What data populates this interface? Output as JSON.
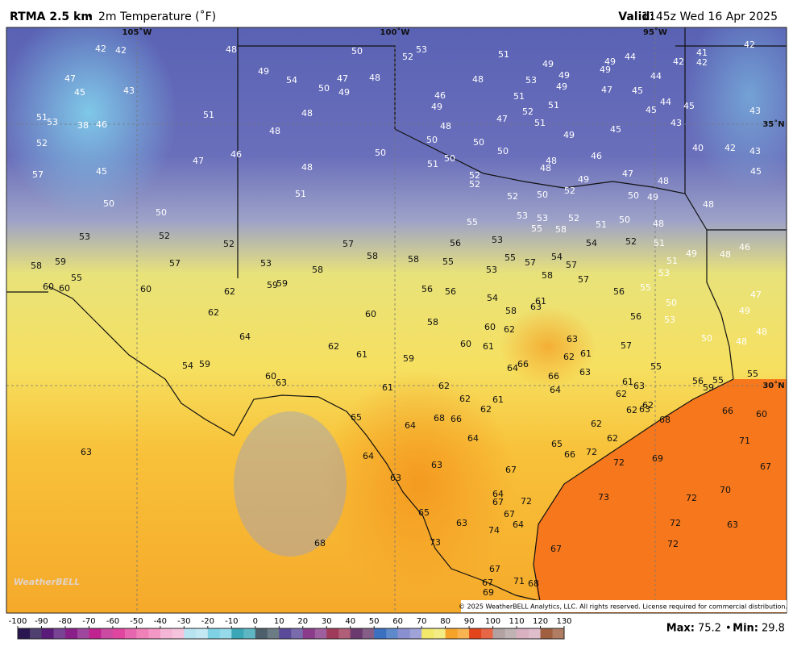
{
  "header": {
    "title": "RTMA 2.5 km",
    "separator": "•",
    "subtitle": "2m Temperature (˚F)",
    "valid_label": "Valid:",
    "valid": "1145z Wed 16 Apr 2025"
  },
  "map": {
    "grid_labels": [
      "105˚W",
      "100˚W",
      "95˚W",
      "35˚N",
      "30˚N"
    ],
    "logo": "WeatherBELL",
    "copyright": "© 2025 WeatherBELL Analytics, LLC. All rights reserved. License required for commercial distribution.",
    "stations": [
      42,
      42,
      48,
      50,
      52,
      53,
      51,
      49,
      49,
      44,
      42,
      41,
      42,
      42,
      47,
      45,
      43,
      49,
      54,
      50,
      47,
      48,
      49,
      48,
      53,
      49,
      49,
      49,
      47,
      45,
      44,
      51,
      53,
      38,
      46,
      51,
      48,
      48,
      46,
      49,
      51,
      52,
      51,
      47,
      51,
      49,
      44,
      45,
      45,
      43,
      43,
      45,
      52,
      46,
      50,
      51,
      50,
      50,
      50,
      48,
      48,
      46,
      40,
      42,
      43,
      45,
      57,
      45,
      47,
      48,
      51,
      50,
      48,
      52,
      52,
      52,
      50,
      52,
      49,
      47,
      48,
      50,
      49,
      48,
      50,
      50,
      53,
      53,
      52,
      51,
      50,
      48,
      53,
      52,
      52,
      55,
      53,
      55,
      58,
      54,
      52,
      51,
      51,
      49,
      48,
      46,
      58,
      59,
      55,
      57,
      53,
      57,
      58,
      58,
      55,
      56,
      55,
      57,
      54,
      57,
      58,
      57,
      53,
      53,
      60,
      60,
      60,
      62,
      59,
      59,
      58,
      56,
      56,
      54,
      58,
      63,
      61,
      56,
      55,
      50,
      47,
      62,
      60,
      58,
      60,
      62,
      56,
      53,
      49,
      48,
      48,
      50,
      64,
      62,
      61,
      59,
      60,
      61,
      63,
      61,
      62,
      57,
      54,
      59,
      64,
      66,
      66,
      63,
      55,
      60,
      63,
      61,
      62,
      62,
      61,
      62,
      64,
      61,
      63,
      62,
      56,
      59,
      55,
      55,
      65,
      64,
      68,
      66,
      62,
      62,
      63,
      62,
      62,
      68,
      66,
      60,
      63,
      64,
      65,
      66,
      72,
      72,
      69,
      71,
      67,
      64,
      63,
      67,
      63,
      64,
      67,
      72,
      73,
      72,
      70,
      65,
      67,
      64,
      63,
      74,
      72,
      63,
      68,
      73,
      72,
      67,
      67,
      71,
      68,
      67,
      69
    ]
  },
  "colorbar": {
    "ticks": [
      -100,
      -90,
      -80,
      -70,
      -60,
      -50,
      -40,
      -30,
      -20,
      -10,
      0,
      10,
      20,
      30,
      40,
      50,
      60,
      70,
      80,
      90,
      100,
      110,
      120,
      130
    ]
  },
  "footer": {
    "max_label": "Max:",
    "max": 75.2,
    "separator": "•",
    "min_label": "Min:",
    "min": 29.8
  }
}
